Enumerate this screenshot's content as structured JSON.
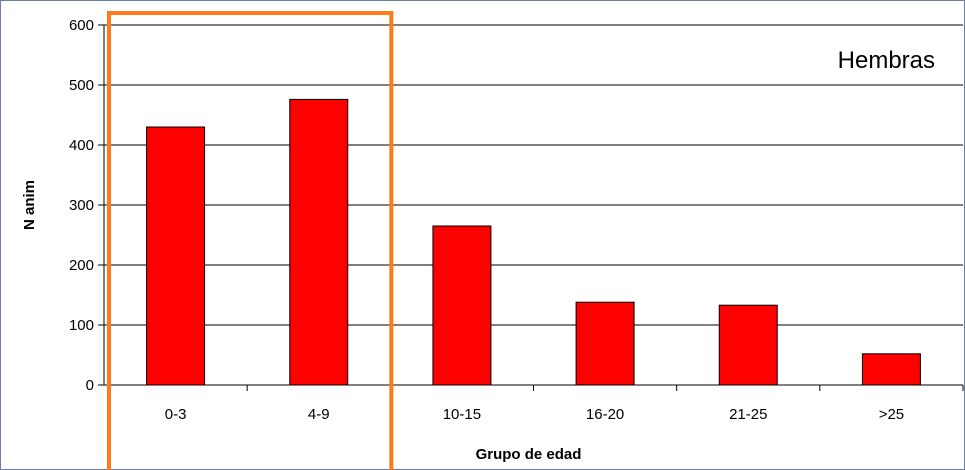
{
  "chart_data": {
    "type": "bar",
    "categories": [
      "0-3",
      "4-9",
      "10-15",
      "16-20",
      "21-25",
      ">25"
    ],
    "series": [
      {
        "values": [
          430,
          476,
          265,
          138,
          133,
          52
        ]
      }
    ],
    "title": "Hembras",
    "xlabel": "Grupo de edad",
    "ylabel": "N anim",
    "ylim": [
      0,
      600
    ],
    "yticks": [
      0,
      100,
      200,
      300,
      400,
      500,
      600
    ],
    "grid": true,
    "colors": {
      "bar": "#ff0000",
      "bar_stroke": "#000000",
      "highlight": "#ff7a1a",
      "grid": "#000000"
    },
    "highlight_categories": [
      "0-3",
      "4-9"
    ]
  }
}
